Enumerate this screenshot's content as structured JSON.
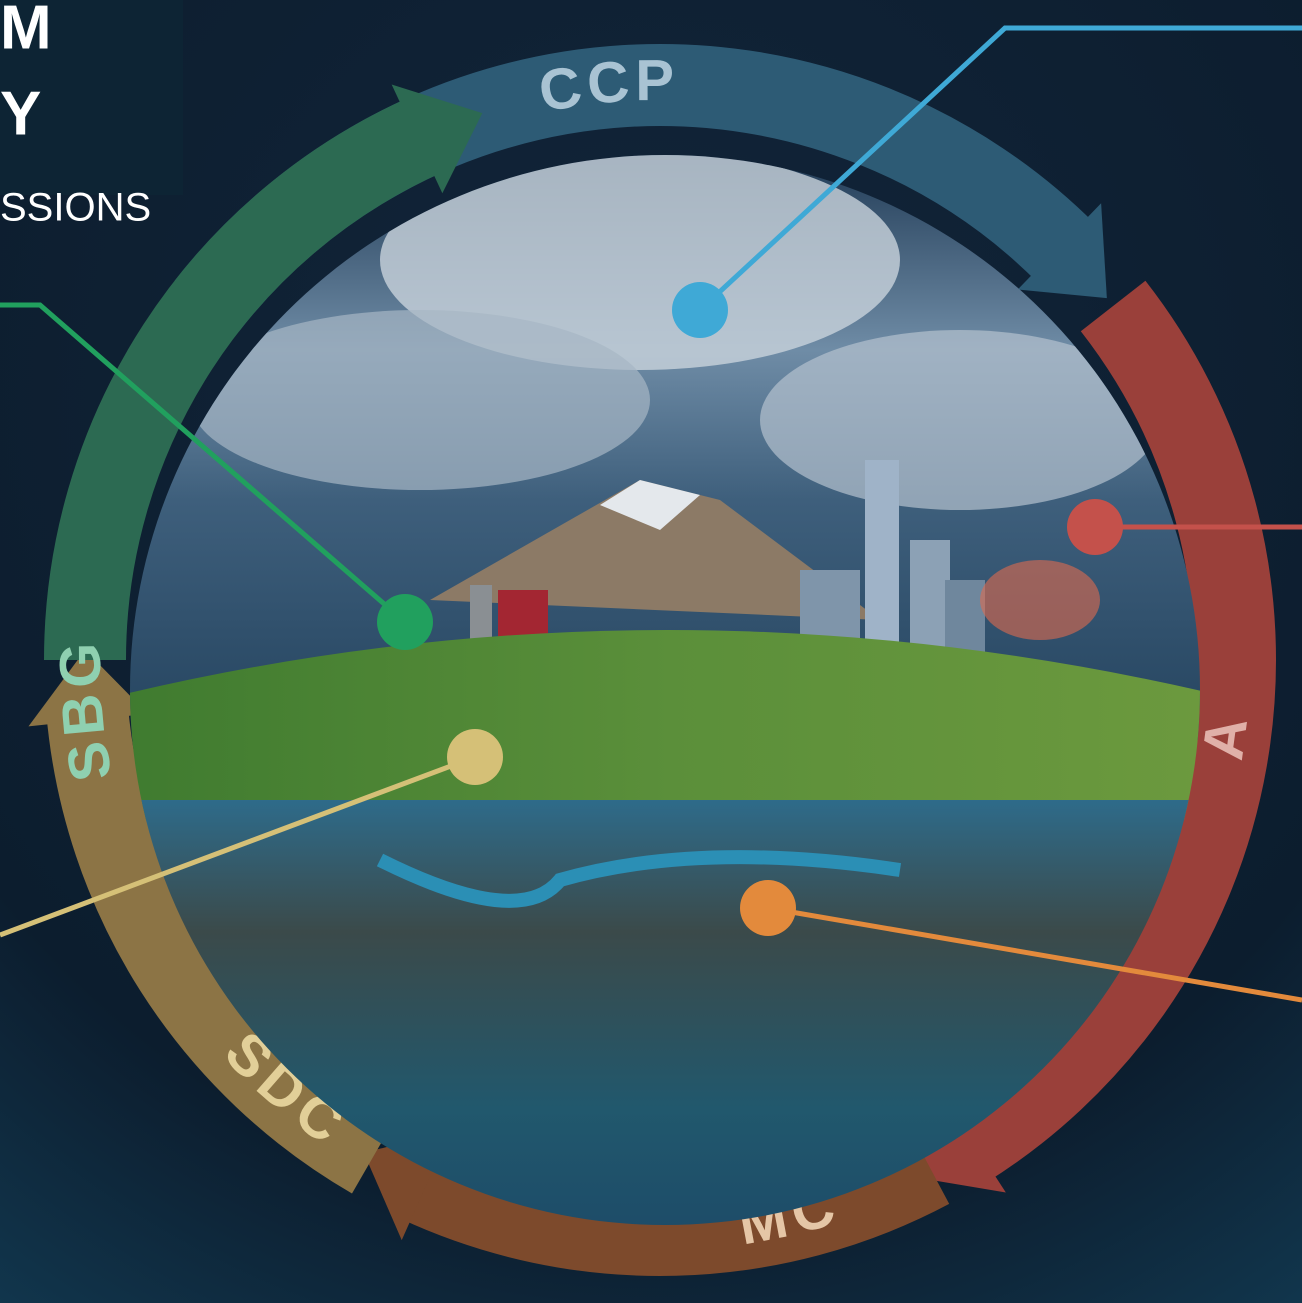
{
  "header": {
    "title_lines": [
      "M",
      "Y"
    ],
    "subtitle": "SSIONS"
  },
  "ring": {
    "segments": [
      {
        "label": "CCP"
      },
      {
        "label": "A"
      },
      {
        "label": "MC"
      },
      {
        "label": "SDC"
      },
      {
        "label": "SBG"
      }
    ]
  }
}
